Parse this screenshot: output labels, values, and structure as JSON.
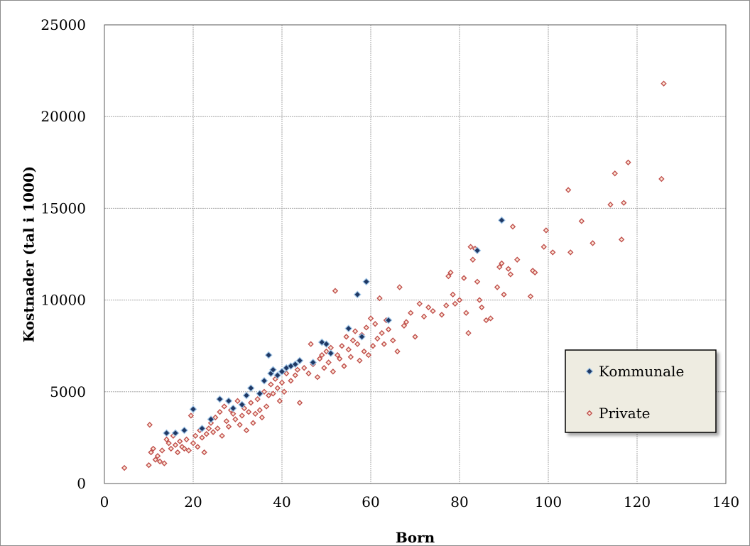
{
  "chart_data": {
    "type": "scatter",
    "xlabel": "Born",
    "ylabel": "Kostnader (tal i 1000)",
    "xlim": [
      0,
      140
    ],
    "ylim": [
      0,
      25000
    ],
    "x_ticks": [
      0,
      20,
      40,
      60,
      80,
      100,
      120,
      140
    ],
    "y_ticks": [
      0,
      5000,
      10000,
      15000,
      20000,
      25000
    ],
    "grid": true,
    "legend_position": "right-middle",
    "series": [
      {
        "name": "Kommunale",
        "marker": "diamond-filled",
        "color": "#1f3864",
        "points": [
          [
            14,
            2750
          ],
          [
            16,
            2750
          ],
          [
            18,
            2900
          ],
          [
            20,
            4050
          ],
          [
            22,
            3000
          ],
          [
            24,
            3500
          ],
          [
            26,
            4600
          ],
          [
            28,
            4500
          ],
          [
            29,
            4100
          ],
          [
            31,
            4300
          ],
          [
            32,
            4800
          ],
          [
            33,
            5200
          ],
          [
            35,
            4900
          ],
          [
            36,
            5600
          ],
          [
            37,
            7000
          ],
          [
            37.5,
            6000
          ],
          [
            38,
            6200
          ],
          [
            39,
            5900
          ],
          [
            40,
            6100
          ],
          [
            41,
            6300
          ],
          [
            42,
            6400
          ],
          [
            43,
            6500
          ],
          [
            44,
            6700
          ],
          [
            47,
            6600
          ],
          [
            49,
            7700
          ],
          [
            50,
            7600
          ],
          [
            51,
            7100
          ],
          [
            55,
            8450
          ],
          [
            57,
            10300
          ],
          [
            58,
            8000
          ],
          [
            59,
            11000
          ],
          [
            64,
            8900
          ],
          [
            84,
            12700
          ],
          [
            89.5,
            14350
          ]
        ]
      },
      {
        "name": "Private",
        "marker": "diamond-open",
        "color": "#c0504d",
        "points": [
          [
            4.5,
            850
          ],
          [
            10,
            1000
          ],
          [
            10.2,
            3200
          ],
          [
            10.5,
            1700
          ],
          [
            11,
            1900
          ],
          [
            11.5,
            1300
          ],
          [
            12,
            1500
          ],
          [
            12.5,
            1200
          ],
          [
            13,
            1800
          ],
          [
            13.5,
            1100
          ],
          [
            14,
            2400
          ],
          [
            14.5,
            2200
          ],
          [
            15,
            1900
          ],
          [
            15.5,
            2600
          ],
          [
            16,
            2100
          ],
          [
            16.5,
            1700
          ],
          [
            17,
            2300
          ],
          [
            17.5,
            2000
          ],
          [
            18,
            1900
          ],
          [
            18.5,
            2400
          ],
          [
            19,
            1800
          ],
          [
            19.5,
            3700
          ],
          [
            20,
            2200
          ],
          [
            20.5,
            2600
          ],
          [
            21,
            2000
          ],
          [
            21.5,
            2900
          ],
          [
            22,
            2500
          ],
          [
            22.5,
            1700
          ],
          [
            23,
            2700
          ],
          [
            23.5,
            3000
          ],
          [
            24,
            3300
          ],
          [
            24.5,
            2800
          ],
          [
            25,
            3600
          ],
          [
            25.5,
            3000
          ],
          [
            26,
            3900
          ],
          [
            26.5,
            2600
          ],
          [
            27,
            4200
          ],
          [
            27.5,
            3400
          ],
          [
            28,
            3100
          ],
          [
            28.5,
            4000
          ],
          [
            29,
            3800
          ],
          [
            29.5,
            3500
          ],
          [
            30,
            4500
          ],
          [
            30.5,
            3200
          ],
          [
            31,
            3700
          ],
          [
            31.5,
            4100
          ],
          [
            32,
            2900
          ],
          [
            32.5,
            3900
          ],
          [
            33,
            4400
          ],
          [
            33.5,
            3300
          ],
          [
            34,
            3800
          ],
          [
            34.5,
            4600
          ],
          [
            35,
            4000
          ],
          [
            35.5,
            3600
          ],
          [
            36,
            5000
          ],
          [
            36.5,
            4200
          ],
          [
            37,
            4800
          ],
          [
            37.5,
            5400
          ],
          [
            38,
            4900
          ],
          [
            38.5,
            5700
          ],
          [
            39,
            5200
          ],
          [
            39.5,
            4500
          ],
          [
            40,
            5500
          ],
          [
            40.5,
            5000
          ],
          [
            41,
            6000
          ],
          [
            42,
            5600
          ],
          [
            43,
            5900
          ],
          [
            43.5,
            6200
          ],
          [
            44,
            4400
          ],
          [
            45,
            6300
          ],
          [
            46,
            6000
          ],
          [
            46.5,
            7600
          ],
          [
            47,
            6500
          ],
          [
            48,
            5800
          ],
          [
            48.5,
            6800
          ],
          [
            49,
            7000
          ],
          [
            49.5,
            6300
          ],
          [
            50,
            7200
          ],
          [
            50.5,
            6600
          ],
          [
            51,
            7400
          ],
          [
            51.5,
            6100
          ],
          [
            52,
            10500
          ],
          [
            52.5,
            7000
          ],
          [
            53,
            6800
          ],
          [
            53.5,
            7500
          ],
          [
            54,
            6400
          ],
          [
            54.5,
            8000
          ],
          [
            55,
            7300
          ],
          [
            55.5,
            6900
          ],
          [
            56,
            7800
          ],
          [
            56.5,
            8300
          ],
          [
            57,
            7600
          ],
          [
            57.5,
            6700
          ],
          [
            58,
            8100
          ],
          [
            58.5,
            7200
          ],
          [
            59,
            8500
          ],
          [
            59.5,
            7000
          ],
          [
            60,
            9000
          ],
          [
            60.5,
            7500
          ],
          [
            61,
            8700
          ],
          [
            61.5,
            7900
          ],
          [
            62,
            10100
          ],
          [
            62.5,
            8200
          ],
          [
            63,
            7600
          ],
          [
            63.5,
            8900
          ],
          [
            64,
            8400
          ],
          [
            65,
            7800
          ],
          [
            66,
            7200
          ],
          [
            66.5,
            10700
          ],
          [
            67.5,
            8600
          ],
          [
            68,
            8800
          ],
          [
            69,
            9300
          ],
          [
            70,
            8000
          ],
          [
            71,
            9800
          ],
          [
            72,
            9100
          ],
          [
            73,
            9600
          ],
          [
            74,
            9400
          ],
          [
            76,
            9200
          ],
          [
            77,
            9700
          ],
          [
            77.5,
            11300
          ],
          [
            78,
            11500
          ],
          [
            78.5,
            10300
          ],
          [
            79,
            9800
          ],
          [
            80,
            10000
          ],
          [
            81,
            11200
          ],
          [
            81.5,
            9300
          ],
          [
            82,
            8200
          ],
          [
            82.5,
            12900
          ],
          [
            83,
            12200
          ],
          [
            83.5,
            12800
          ],
          [
            84,
            11000
          ],
          [
            84.5,
            10000
          ],
          [
            85,
            9600
          ],
          [
            86,
            8900
          ],
          [
            87,
            9000
          ],
          [
            88.5,
            10700
          ],
          [
            89,
            11800
          ],
          [
            89.5,
            12000
          ],
          [
            90,
            10300
          ],
          [
            91,
            11700
          ],
          [
            91.5,
            11400
          ],
          [
            92,
            14000
          ],
          [
            93,
            12200
          ],
          [
            96,
            10200
          ],
          [
            96.5,
            11600
          ],
          [
            97,
            11500
          ],
          [
            99,
            12900
          ],
          [
            99.5,
            13800
          ],
          [
            101,
            12600
          ],
          [
            104.5,
            16000
          ],
          [
            105,
            12600
          ],
          [
            107.5,
            14300
          ],
          [
            110,
            13100
          ],
          [
            114,
            15200
          ],
          [
            115,
            16900
          ],
          [
            116.5,
            13300
          ],
          [
            117,
            15300
          ],
          [
            118,
            17500
          ],
          [
            125.5,
            16600
          ],
          [
            126,
            21800
          ]
        ]
      }
    ]
  }
}
